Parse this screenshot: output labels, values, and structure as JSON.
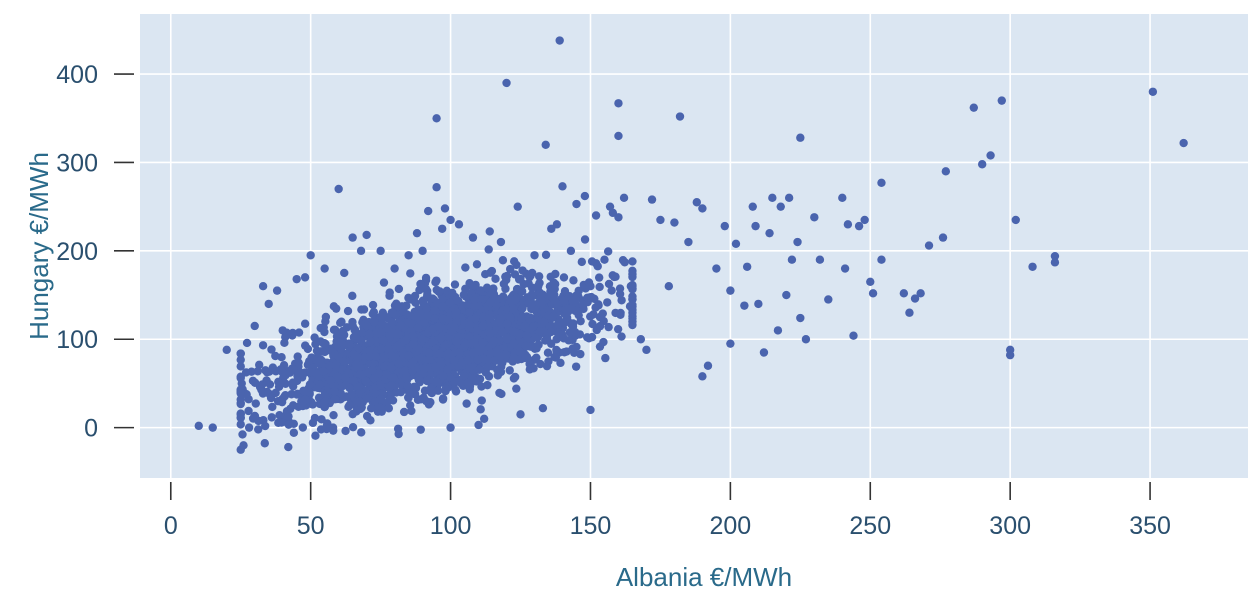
{
  "chart_data": {
    "type": "scatter",
    "title": "",
    "xlabel": "Albania €/MWh",
    "ylabel": "Hungary €/MWh",
    "xlim": [
      -11,
      385
    ],
    "ylim": [
      -57,
      468
    ],
    "x_ticks": [
      0,
      50,
      100,
      150,
      200,
      250,
      300,
      350
    ],
    "y_ticks": [
      0,
      100,
      200,
      300,
      400
    ],
    "grid": true,
    "colors": {
      "background": "#dbe6f2",
      "grid": "#ffffff",
      "point": "#4a64ae",
      "text": "#2a4f6e"
    },
    "seed": 20240611,
    "series": [
      {
        "name": "",
        "cluster": {
          "count": 2600,
          "x_mean": 95,
          "x_sd": 28,
          "x_min": 25,
          "x_max": 165,
          "y_intercept": 20,
          "y_slope": 0.78,
          "y_sd": 28,
          "y_min": -25,
          "y_max": 230
        },
        "points": [
          [
            10,
            2
          ],
          [
            15,
            0
          ],
          [
            20,
            88
          ],
          [
            25,
            40
          ],
          [
            26,
            -20
          ],
          [
            28,
            0
          ],
          [
            30,
            115
          ],
          [
            33,
            160
          ],
          [
            35,
            140
          ],
          [
            38,
            155
          ],
          [
            40,
            110
          ],
          [
            42,
            -22
          ],
          [
            45,
            168
          ],
          [
            48,
            170
          ],
          [
            50,
            195
          ],
          [
            55,
            180
          ],
          [
            58,
            0
          ],
          [
            60,
            270
          ],
          [
            62,
            175
          ],
          [
            65,
            215
          ],
          [
            68,
            200
          ],
          [
            70,
            218
          ],
          [
            75,
            200
          ],
          [
            80,
            180
          ],
          [
            85,
            195
          ],
          [
            88,
            220
          ],
          [
            90,
            200
          ],
          [
            92,
            245
          ],
          [
            95,
            350
          ],
          [
            95,
            272
          ],
          [
            97,
            225
          ],
          [
            98,
            248
          ],
          [
            100,
            235
          ],
          [
            100,
            0
          ],
          [
            103,
            230
          ],
          [
            108,
            215
          ],
          [
            110,
            3
          ],
          [
            112,
            10
          ],
          [
            114,
            222
          ],
          [
            118,
            210
          ],
          [
            120,
            390
          ],
          [
            124,
            250
          ],
          [
            125,
            15
          ],
          [
            130,
            195
          ],
          [
            133,
            22
          ],
          [
            134,
            320
          ],
          [
            136,
            225
          ],
          [
            138,
            230
          ],
          [
            139,
            438
          ],
          [
            140,
            273
          ],
          [
            143,
            200
          ],
          [
            145,
            253
          ],
          [
            148,
            262
          ],
          [
            150,
            160
          ],
          [
            150,
            20
          ],
          [
            152,
            240
          ],
          [
            155,
            190
          ],
          [
            157,
            250
          ],
          [
            158,
            243
          ],
          [
            160,
            367
          ],
          [
            160,
            330
          ],
          [
            160,
            238
          ],
          [
            162,
            260
          ],
          [
            165,
            120
          ],
          [
            168,
            100
          ],
          [
            170,
            88
          ],
          [
            172,
            258
          ],
          [
            175,
            235
          ],
          [
            178,
            160
          ],
          [
            180,
            232
          ],
          [
            182,
            352
          ],
          [
            185,
            210
          ],
          [
            188,
            255
          ],
          [
            190,
            248
          ],
          [
            190,
            58
          ],
          [
            192,
            70
          ],
          [
            195,
            180
          ],
          [
            198,
            228
          ],
          [
            200,
            95
          ],
          [
            200,
            155
          ],
          [
            202,
            208
          ],
          [
            205,
            138
          ],
          [
            206,
            182
          ],
          [
            208,
            250
          ],
          [
            209,
            228
          ],
          [
            210,
            140
          ],
          [
            212,
            85
          ],
          [
            214,
            220
          ],
          [
            215,
            260
          ],
          [
            217,
            110
          ],
          [
            218,
            250
          ],
          [
            220,
            150
          ],
          [
            221,
            260
          ],
          [
            222,
            190
          ],
          [
            224,
            210
          ],
          [
            225,
            328
          ],
          [
            225,
            124
          ],
          [
            227,
            100
          ],
          [
            230,
            238
          ],
          [
            232,
            190
          ],
          [
            235,
            145
          ],
          [
            240,
            260
          ],
          [
            241,
            180
          ],
          [
            242,
            230
          ],
          [
            244,
            104
          ],
          [
            246,
            228
          ],
          [
            248,
            235
          ],
          [
            250,
            165
          ],
          [
            251,
            152
          ],
          [
            254,
            277
          ],
          [
            254,
            190
          ],
          [
            262,
            152
          ],
          [
            264,
            130
          ],
          [
            266,
            146
          ],
          [
            268,
            152
          ],
          [
            271,
            206
          ],
          [
            276,
            215
          ],
          [
            277,
            290
          ],
          [
            287,
            362
          ],
          [
            290,
            298
          ],
          [
            293,
            308
          ],
          [
            297,
            370
          ],
          [
            300,
            88
          ],
          [
            300,
            82
          ],
          [
            302,
            235
          ],
          [
            308,
            182
          ],
          [
            316,
            194
          ],
          [
            316,
            187
          ],
          [
            351,
            380
          ],
          [
            362,
            322
          ]
        ]
      }
    ]
  }
}
